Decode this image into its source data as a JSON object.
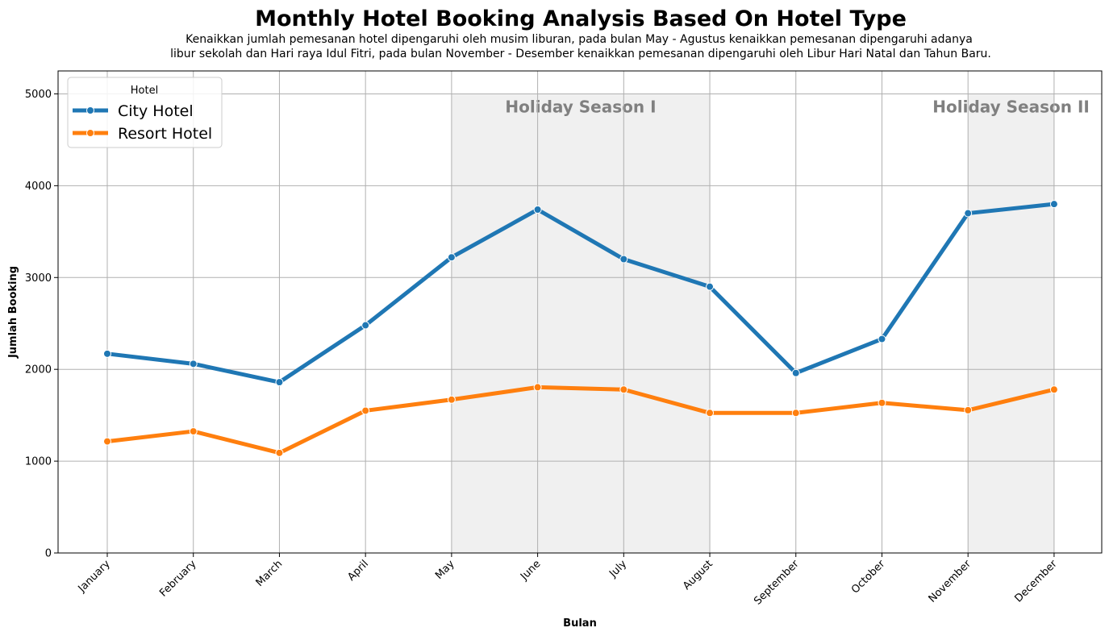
{
  "chart_data": {
    "type": "line",
    "title": "Monthly Hotel Booking Analysis Based On Hotel Type",
    "subtitle": [
      "Kenaikkan jumlah pemesanan hotel dipengaruhi oleh musim liburan, pada bulan May - Agustus kenaikkan pemesanan dipengaruhi adanya",
      "libur sekolah dan Hari raya Idul Fitri, pada bulan November - Desember kenaikkan pemesanan dipengaruhi oleh Libur Hari Natal dan Tahun Baru."
    ],
    "xlabel": "Bulan",
    "ylabel": "Jumlah Booking",
    "categories": [
      "January",
      "February",
      "March",
      "April",
      "May",
      "June",
      "July",
      "August",
      "September",
      "October",
      "November",
      "December"
    ],
    "ylim": [
      0,
      5250
    ],
    "yticks": [
      0,
      1000,
      2000,
      3000,
      4000,
      5000
    ],
    "grid": true,
    "legend": {
      "title": "Hotel",
      "placement": "upper-left"
    },
    "series": [
      {
        "name": "City Hotel",
        "color": "#1f77b4",
        "values": [
          2170,
          2060,
          1860,
          2480,
          3220,
          3740,
          3200,
          2900,
          1960,
          2330,
          3700,
          3800
        ]
      },
      {
        "name": "Resort Hotel",
        "color": "#ff7f0e",
        "values": [
          1215,
          1325,
          1090,
          1550,
          1670,
          1805,
          1780,
          1525,
          1525,
          1635,
          1555,
          1780
        ]
      }
    ],
    "annotations": [
      {
        "label": "Holiday Season I",
        "span": [
          "May",
          "August"
        ],
        "ymax": 5000,
        "color": "#f0f0f0"
      },
      {
        "label": "Holiday Season II",
        "span": [
          "November",
          "December"
        ],
        "ymax": 5000,
        "color": "#f0f0f0"
      }
    ]
  }
}
